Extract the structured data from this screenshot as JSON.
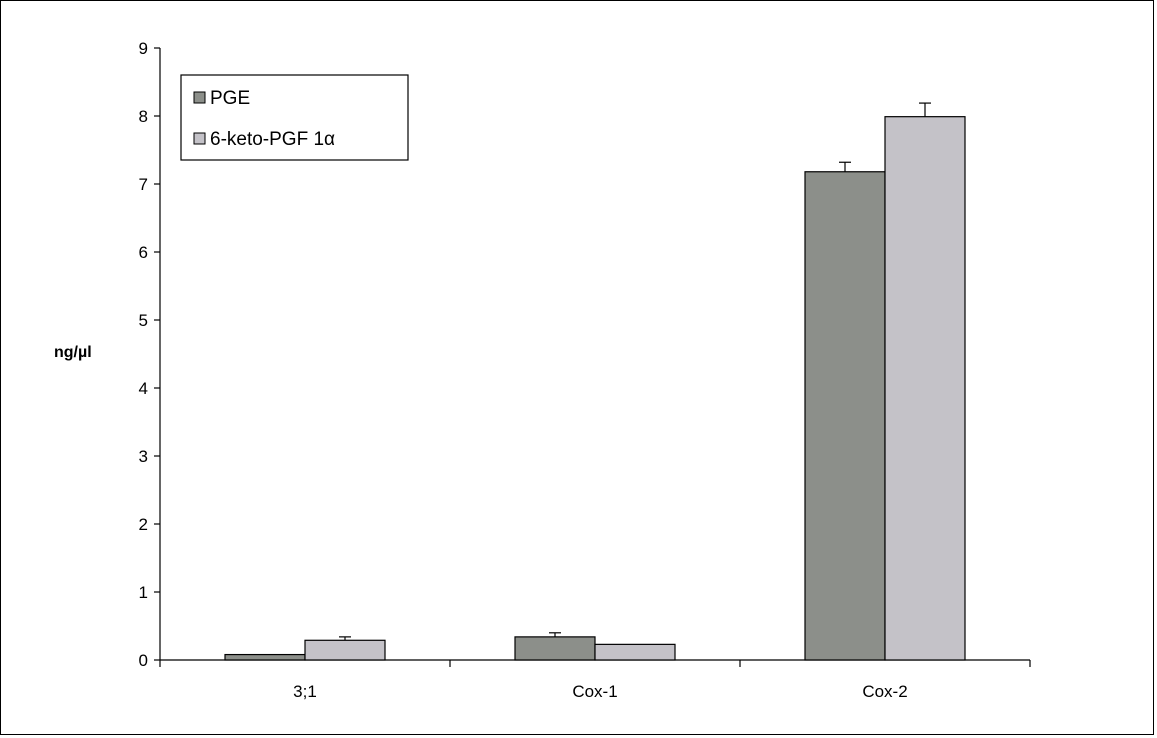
{
  "chart_data": {
    "type": "bar",
    "title": "",
    "xlabel": "",
    "ylabel": "ng/µl",
    "ylim": [
      0,
      9
    ],
    "yticks": [
      0,
      1,
      2,
      3,
      4,
      5,
      6,
      7,
      8,
      9
    ],
    "categories": [
      "3;1",
      "Cox-1",
      "Cox-2"
    ],
    "series": [
      {
        "name": "PGE",
        "color": "#8c8f8a",
        "values": [
          0.08,
          0.34,
          7.18
        ],
        "errors": [
          0.0,
          0.06,
          0.14
        ]
      },
      {
        "name": "6-keto-PGF 1α",
        "color": "#c4c2c8",
        "values": [
          0.29,
          0.23,
          7.99
        ],
        "errors": [
          0.05,
          0.0,
          0.2
        ]
      }
    ],
    "grid": false,
    "legend_position": "top-left"
  }
}
